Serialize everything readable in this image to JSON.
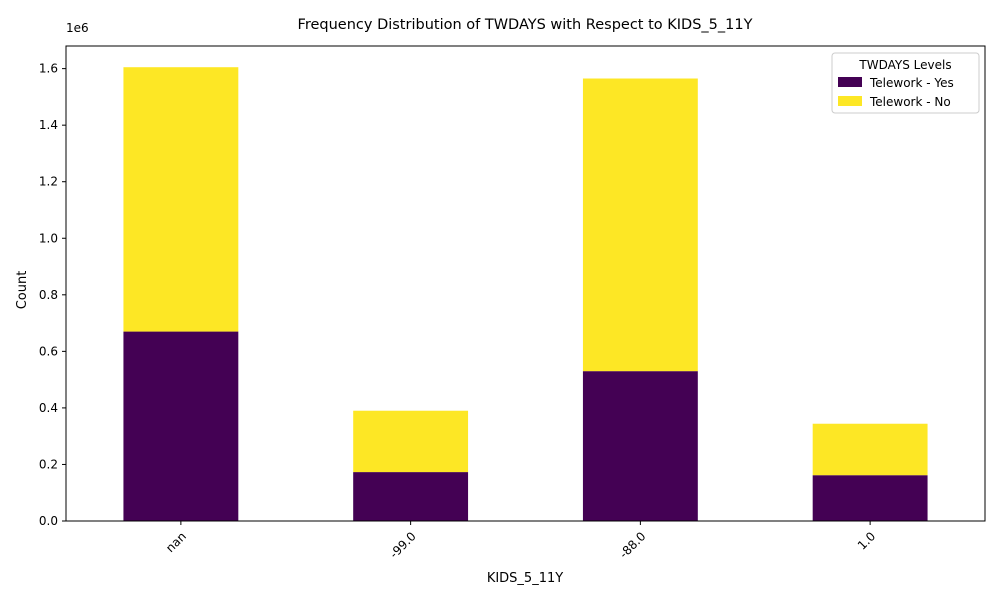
{
  "chart_data": {
    "type": "bar",
    "stacked": true,
    "title": "Frequency Distribution of TWDAYS with Respect to KIDS_5_11Y",
    "xlabel": "KIDS_5_11Y",
    "ylabel": "Count",
    "y_scale_label": "1e6",
    "y_scale_factor": 1000000,
    "categories": [
      "nan",
      "-99.0",
      "-88.0",
      "1.0"
    ],
    "ylim": [
      0,
      1680000
    ],
    "yticks": [
      0,
      200000,
      400000,
      600000,
      800000,
      1000000,
      1200000,
      1400000,
      1600000
    ],
    "ytick_labels": [
      "0.0",
      "0.2",
      "0.4",
      "0.6",
      "0.8",
      "1.0",
      "1.2",
      "1.4",
      "1.6"
    ],
    "grid": false,
    "legend": {
      "title": "TWDAYS Levels",
      "placement": "top-right"
    },
    "series": [
      {
        "name": "Telework - Yes",
        "color": "#440154",
        "values": [
          670000,
          173000,
          530000,
          162000
        ]
      },
      {
        "name": "Telework - No",
        "color": "#fde725",
        "values": [
          935000,
          217000,
          1035000,
          182000
        ]
      }
    ]
  }
}
